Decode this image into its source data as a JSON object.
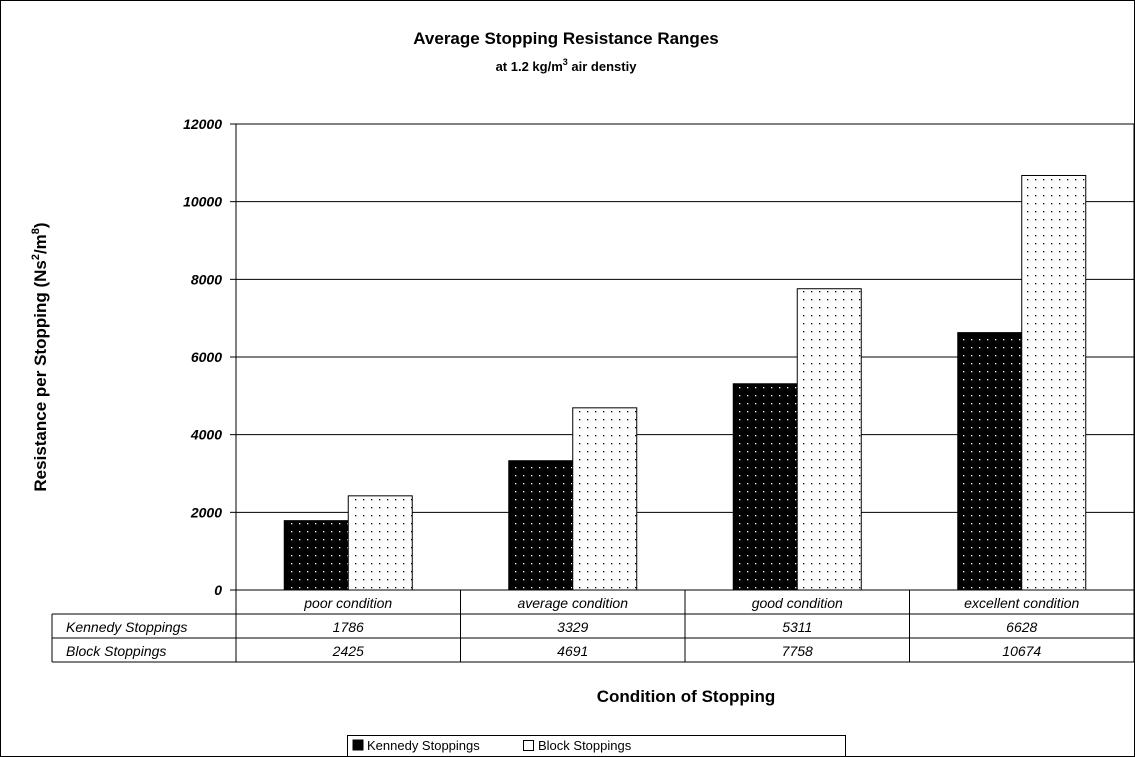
{
  "chart_data": {
    "type": "bar",
    "title": "Average Stopping Resistance Ranges",
    "subtitle": {
      "prefix": "at 1.2 kg/m",
      "sup": "3",
      "suffix": " air denstiy"
    },
    "ylabel": {
      "text": "Resistance per Stopping (Ns",
      "sup1": "2",
      "mid": "/m",
      "sup2": "8",
      "end": ")"
    },
    "xlabel": "Condition of Stopping",
    "categories": [
      "poor condition",
      "average condition",
      "good condition",
      "excellent condition"
    ],
    "series": [
      {
        "name": "Kennedy Stoppings",
        "values": [
          1786,
          3329,
          5311,
          6628
        ],
        "fill": "black-dotted"
      },
      {
        "name": "Block Stoppings",
        "values": [
          2425,
          4691,
          7758,
          10674
        ],
        "fill": "white-dotted"
      }
    ],
    "ylim": [
      0,
      12000
    ],
    "yticks": [
      "0",
      "2000",
      "4000",
      "6000",
      "8000",
      "10000",
      "12000"
    ],
    "grid": true,
    "data_table": true,
    "legend_position": "bottom"
  },
  "colors": {
    "kennedy": "#000000",
    "block": "#ffffff",
    "grid": "#000000"
  }
}
